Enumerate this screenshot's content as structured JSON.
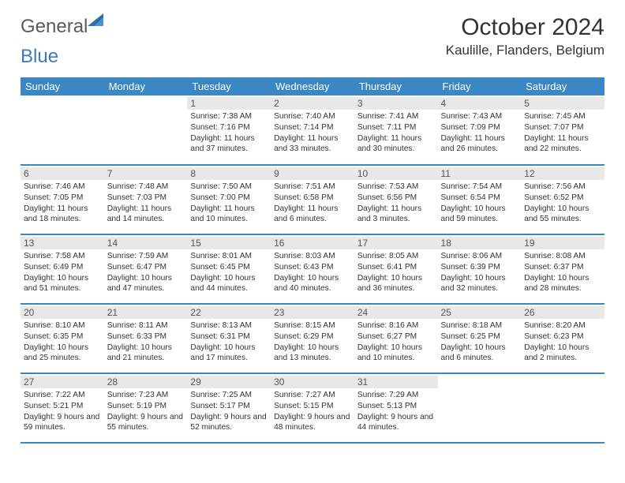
{
  "brand": {
    "part1": "General",
    "part2": "Blue",
    "gray": "#6a6a6a",
    "blue": "#3a7ab8"
  },
  "title": "October 2024",
  "location": "Kaulille, Flanders, Belgium",
  "accent": "#3a87c4",
  "daynum_bg": "#e8e8e8",
  "weekdays": [
    "Sunday",
    "Monday",
    "Tuesday",
    "Wednesday",
    "Thursday",
    "Friday",
    "Saturday"
  ],
  "weeks": [
    [
      {
        "n": "",
        "lines": [
          "",
          "",
          ""
        ]
      },
      {
        "n": "",
        "lines": [
          "",
          "",
          ""
        ]
      },
      {
        "n": "1",
        "lines": [
          "Sunrise: 7:38 AM",
          "Sunset: 7:16 PM",
          "Daylight: 11 hours and 37 minutes."
        ]
      },
      {
        "n": "2",
        "lines": [
          "Sunrise: 7:40 AM",
          "Sunset: 7:14 PM",
          "Daylight: 11 hours and 33 minutes."
        ]
      },
      {
        "n": "3",
        "lines": [
          "Sunrise: 7:41 AM",
          "Sunset: 7:11 PM",
          "Daylight: 11 hours and 30 minutes."
        ]
      },
      {
        "n": "4",
        "lines": [
          "Sunrise: 7:43 AM",
          "Sunset: 7:09 PM",
          "Daylight: 11 hours and 26 minutes."
        ]
      },
      {
        "n": "5",
        "lines": [
          "Sunrise: 7:45 AM",
          "Sunset: 7:07 PM",
          "Daylight: 11 hours and 22 minutes."
        ]
      }
    ],
    [
      {
        "n": "6",
        "lines": [
          "Sunrise: 7:46 AM",
          "Sunset: 7:05 PM",
          "Daylight: 11 hours and 18 minutes."
        ]
      },
      {
        "n": "7",
        "lines": [
          "Sunrise: 7:48 AM",
          "Sunset: 7:03 PM",
          "Daylight: 11 hours and 14 minutes."
        ]
      },
      {
        "n": "8",
        "lines": [
          "Sunrise: 7:50 AM",
          "Sunset: 7:00 PM",
          "Daylight: 11 hours and 10 minutes."
        ]
      },
      {
        "n": "9",
        "lines": [
          "Sunrise: 7:51 AM",
          "Sunset: 6:58 PM",
          "Daylight: 11 hours and 6 minutes."
        ]
      },
      {
        "n": "10",
        "lines": [
          "Sunrise: 7:53 AM",
          "Sunset: 6:56 PM",
          "Daylight: 11 hours and 3 minutes."
        ]
      },
      {
        "n": "11",
        "lines": [
          "Sunrise: 7:54 AM",
          "Sunset: 6:54 PM",
          "Daylight: 10 hours and 59 minutes."
        ]
      },
      {
        "n": "12",
        "lines": [
          "Sunrise: 7:56 AM",
          "Sunset: 6:52 PM",
          "Daylight: 10 hours and 55 minutes."
        ]
      }
    ],
    [
      {
        "n": "13",
        "lines": [
          "Sunrise: 7:58 AM",
          "Sunset: 6:49 PM",
          "Daylight: 10 hours and 51 minutes."
        ]
      },
      {
        "n": "14",
        "lines": [
          "Sunrise: 7:59 AM",
          "Sunset: 6:47 PM",
          "Daylight: 10 hours and 47 minutes."
        ]
      },
      {
        "n": "15",
        "lines": [
          "Sunrise: 8:01 AM",
          "Sunset: 6:45 PM",
          "Daylight: 10 hours and 44 minutes."
        ]
      },
      {
        "n": "16",
        "lines": [
          "Sunrise: 8:03 AM",
          "Sunset: 6:43 PM",
          "Daylight: 10 hours and 40 minutes."
        ]
      },
      {
        "n": "17",
        "lines": [
          "Sunrise: 8:05 AM",
          "Sunset: 6:41 PM",
          "Daylight: 10 hours and 36 minutes."
        ]
      },
      {
        "n": "18",
        "lines": [
          "Sunrise: 8:06 AM",
          "Sunset: 6:39 PM",
          "Daylight: 10 hours and 32 minutes."
        ]
      },
      {
        "n": "19",
        "lines": [
          "Sunrise: 8:08 AM",
          "Sunset: 6:37 PM",
          "Daylight: 10 hours and 28 minutes."
        ]
      }
    ],
    [
      {
        "n": "20",
        "lines": [
          "Sunrise: 8:10 AM",
          "Sunset: 6:35 PM",
          "Daylight: 10 hours and 25 minutes."
        ]
      },
      {
        "n": "21",
        "lines": [
          "Sunrise: 8:11 AM",
          "Sunset: 6:33 PM",
          "Daylight: 10 hours and 21 minutes."
        ]
      },
      {
        "n": "22",
        "lines": [
          "Sunrise: 8:13 AM",
          "Sunset: 6:31 PM",
          "Daylight: 10 hours and 17 minutes."
        ]
      },
      {
        "n": "23",
        "lines": [
          "Sunrise: 8:15 AM",
          "Sunset: 6:29 PM",
          "Daylight: 10 hours and 13 minutes."
        ]
      },
      {
        "n": "24",
        "lines": [
          "Sunrise: 8:16 AM",
          "Sunset: 6:27 PM",
          "Daylight: 10 hours and 10 minutes."
        ]
      },
      {
        "n": "25",
        "lines": [
          "Sunrise: 8:18 AM",
          "Sunset: 6:25 PM",
          "Daylight: 10 hours and 6 minutes."
        ]
      },
      {
        "n": "26",
        "lines": [
          "Sunrise: 8:20 AM",
          "Sunset: 6:23 PM",
          "Daylight: 10 hours and 2 minutes."
        ]
      }
    ],
    [
      {
        "n": "27",
        "lines": [
          "Sunrise: 7:22 AM",
          "Sunset: 5:21 PM",
          "Daylight: 9 hours and 59 minutes."
        ]
      },
      {
        "n": "28",
        "lines": [
          "Sunrise: 7:23 AM",
          "Sunset: 5:19 PM",
          "Daylight: 9 hours and 55 minutes."
        ]
      },
      {
        "n": "29",
        "lines": [
          "Sunrise: 7:25 AM",
          "Sunset: 5:17 PM",
          "Daylight: 9 hours and 52 minutes."
        ]
      },
      {
        "n": "30",
        "lines": [
          "Sunrise: 7:27 AM",
          "Sunset: 5:15 PM",
          "Daylight: 9 hours and 48 minutes."
        ]
      },
      {
        "n": "31",
        "lines": [
          "Sunrise: 7:29 AM",
          "Sunset: 5:13 PM",
          "Daylight: 9 hours and 44 minutes."
        ]
      },
      {
        "n": "",
        "lines": [
          "",
          "",
          ""
        ]
      },
      {
        "n": "",
        "lines": [
          "",
          "",
          ""
        ]
      }
    ]
  ]
}
